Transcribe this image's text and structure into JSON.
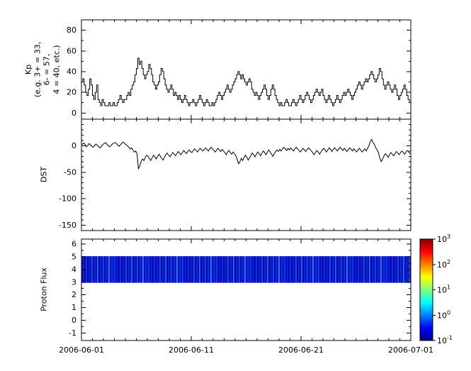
{
  "figure": {
    "bg": "#ffffff",
    "axis_color": "#000000",
    "line_color": "#000000"
  },
  "xaxis": {
    "range_days": 30,
    "tick_labels": [
      "2006-06-01",
      "2006-06-11",
      "2006-06-21",
      "2006-07-01"
    ],
    "major_tick_days": [
      0,
      10,
      20,
      30
    ]
  },
  "chart_data": [
    {
      "type": "line",
      "panel": "kp",
      "ylabel_lines": [
        "Kp",
        "(e.g. 3+ = 33,",
        "6- = 57,",
        "4 = 40, etc.)"
      ],
      "ylim": [
        -6,
        90
      ],
      "yticks": [
        0,
        20,
        40,
        60,
        80
      ],
      "yticks_minor": [
        10,
        30,
        50,
        70
      ],
      "step": true,
      "cadence_hours": 3,
      "values": [
        30,
        33,
        27,
        20,
        17,
        23,
        33,
        27,
        17,
        13,
        20,
        27,
        13,
        10,
        7,
        13,
        10,
        7,
        7,
        7,
        10,
        7,
        7,
        10,
        7,
        7,
        10,
        13,
        17,
        13,
        10,
        13,
        13,
        17,
        20,
        17,
        23,
        27,
        30,
        37,
        43,
        53,
        47,
        50,
        43,
        37,
        33,
        37,
        40,
        47,
        43,
        37,
        30,
        27,
        23,
        27,
        30,
        37,
        43,
        40,
        33,
        27,
        23,
        20,
        23,
        27,
        23,
        17,
        20,
        17,
        13,
        17,
        13,
        10,
        13,
        17,
        13,
        10,
        7,
        10,
        10,
        13,
        10,
        7,
        10,
        13,
        17,
        13,
        10,
        7,
        10,
        13,
        10,
        7,
        7,
        10,
        7,
        10,
        13,
        17,
        20,
        17,
        13,
        17,
        20,
        23,
        27,
        23,
        20,
        23,
        27,
        30,
        33,
        37,
        40,
        37,
        33,
        37,
        33,
        30,
        27,
        30,
        33,
        30,
        23,
        20,
        17,
        20,
        17,
        13,
        17,
        20,
        23,
        27,
        23,
        17,
        13,
        17,
        23,
        27,
        23,
        17,
        13,
        10,
        7,
        10,
        7,
        7,
        10,
        13,
        10,
        7,
        7,
        10,
        13,
        10,
        7,
        10,
        13,
        17,
        13,
        10,
        13,
        17,
        20,
        17,
        13,
        10,
        13,
        17,
        20,
        23,
        20,
        17,
        20,
        23,
        17,
        13,
        10,
        13,
        17,
        13,
        10,
        7,
        10,
        13,
        17,
        13,
        10,
        13,
        17,
        20,
        17,
        20,
        23,
        20,
        17,
        13,
        17,
        20,
        23,
        27,
        30,
        27,
        23,
        27,
        30,
        33,
        30,
        33,
        37,
        40,
        37,
        33,
        30,
        33,
        37,
        43,
        40,
        33,
        27,
        23,
        27,
        30,
        27,
        23,
        20,
        23,
        27,
        23,
        17,
        13,
        17,
        20,
        23,
        27,
        23,
        17,
        13,
        10
      ]
    },
    {
      "type": "line",
      "panel": "dst",
      "ylabel": "DST",
      "ylim": [
        -160,
        50
      ],
      "yticks": [
        0,
        -50,
        -100,
        -150
      ],
      "yticks_minor": [
        -140,
        -130,
        -120,
        -110,
        -90,
        -80,
        -70,
        -60,
        -40,
        -30,
        -20,
        -10,
        10,
        20,
        30,
        40
      ],
      "step": false,
      "cadence_hours": 3,
      "values": [
        2,
        5,
        3,
        -2,
        0,
        4,
        2,
        -1,
        -3,
        0,
        3,
        1,
        -2,
        -4,
        -1,
        2,
        4,
        6,
        3,
        0,
        -2,
        0,
        3,
        5,
        6,
        4,
        1,
        -1,
        2,
        5,
        7,
        4,
        2,
        0,
        -3,
        -6,
        -4,
        -8,
        -12,
        -10,
        -15,
        -44,
        -38,
        -30,
        -25,
        -28,
        -22,
        -18,
        -20,
        -24,
        -28,
        -23,
        -18,
        -21,
        -25,
        -20,
        -16,
        -20,
        -24,
        -27,
        -22,
        -17,
        -14,
        -18,
        -21,
        -17,
        -13,
        -16,
        -19,
        -15,
        -11,
        -14,
        -17,
        -13,
        -9,
        -12,
        -15,
        -11,
        -8,
        -11,
        -13,
        -9,
        -6,
        -9,
        -12,
        -8,
        -5,
        -8,
        -10,
        -7,
        -4,
        -7,
        -10,
        -6,
        -3,
        -6,
        -9,
        -12,
        -8,
        -5,
        -8,
        -11,
        -7,
        -10,
        -13,
        -17,
        -12,
        -9,
        -13,
        -16,
        -12,
        -15,
        -19,
        -26,
        -34,
        -30,
        -24,
        -28,
        -22,
        -18,
        -22,
        -27,
        -23,
        -18,
        -14,
        -17,
        -21,
        -16,
        -12,
        -15,
        -19,
        -14,
        -10,
        -13,
        -17,
        -12,
        -8,
        -12,
        -16,
        -20,
        -15,
        -11,
        -8,
        -11,
        -7,
        -10,
        -6,
        -3,
        -6,
        -9,
        -5,
        -8,
        -4,
        -7,
        -10,
        -6,
        -3,
        -6,
        -9,
        -12,
        -8,
        -5,
        -8,
        -11,
        -7,
        -4,
        -7,
        -10,
        -13,
        -17,
        -13,
        -9,
        -12,
        -16,
        -12,
        -8,
        -5,
        -8,
        -12,
        -8,
        -4,
        -7,
        -11,
        -7,
        -4,
        -7,
        -10,
        -6,
        -3,
        -6,
        -9,
        -5,
        -8,
        -11,
        -7,
        -4,
        -7,
        -10,
        -6,
        -9,
        -12,
        -8,
        -5,
        -8,
        -12,
        -9,
        -6,
        -10,
        -5,
        0,
        8,
        12,
        6,
        2,
        -4,
        -8,
        -14,
        -24,
        -30,
        -25,
        -19,
        -15,
        -18,
        -22,
        -17,
        -13,
        -16,
        -19,
        -15,
        -11,
        -14,
        -17,
        -13,
        -10,
        -13,
        -16,
        -12,
        -9,
        -12,
        -15
      ]
    },
    {
      "type": "heatmap",
      "panel": "proton_flux",
      "ylabel": "Proton Flux",
      "ylim": [
        -1.6,
        6.4
      ],
      "yticks": [
        6,
        5,
        4,
        3,
        2,
        1,
        0,
        -1
      ],
      "yticks_minor": [
        5.5,
        4.5,
        3.5,
        2.5,
        1.5,
        0.5,
        -0.5
      ],
      "band": {
        "y_min": 2.95,
        "y_max": 5.05,
        "stripe_colors": [
          "#0011c8",
          "#0a1fd6",
          "#000c9e",
          "#1433e0",
          "#0009b4",
          "#0b21cf",
          "#0312b8",
          "#1e48ea",
          "#000ea6",
          "#0d28d8",
          "#0516c0",
          "#2a58f0",
          "#0008a0",
          "#0c24d2",
          "#0414bc",
          "#1840e6",
          "#000cb0",
          "#0e2ada",
          "#0618c4",
          "#3a6cf4",
          "#0210b2",
          "#0f2cdc",
          "#0718c6",
          "#1236e2"
        ]
      },
      "colorbar": {
        "scale": "log",
        "labels": [
          "10^3",
          "10^2",
          "10^1",
          "10^0",
          "10^-1"
        ],
        "stops_bottom_to_top": [
          "#000083",
          "#0000ff",
          "#0080ff",
          "#00ffff",
          "#80ff80",
          "#ffff00",
          "#ff8000",
          "#ff0000",
          "#800000"
        ]
      }
    }
  ]
}
